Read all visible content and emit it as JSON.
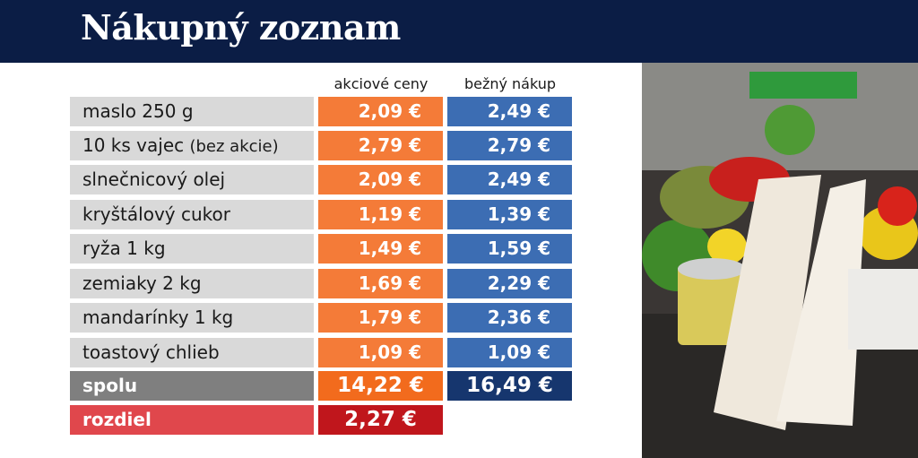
{
  "header": {
    "title": "Nákupný zoznam"
  },
  "table": {
    "columns": [
      "akciové ceny",
      "bežný nákup"
    ],
    "rows": [
      {
        "label": "maslo 250 g",
        "values": [
          "2,09 €",
          "2,49 €"
        ]
      },
      {
        "label": "10 ks vajec",
        "note": "(bez akcie)",
        "values": [
          "2,79 €",
          "2,79 €"
        ]
      },
      {
        "label": "slnečnicový olej",
        "values": [
          "2,09 €",
          "2,49 €"
        ]
      },
      {
        "label": "kryštálový cukor",
        "values": [
          "1,19 €",
          "1,39 €"
        ]
      },
      {
        "label": "ryža 1 kg",
        "values": [
          "1,49 €",
          "1,59 €"
        ]
      },
      {
        "label": "zemiaky 2 kg",
        "values": [
          "1,69 €",
          "2,29 €"
        ]
      },
      {
        "label": "mandarínky 1 kg",
        "values": [
          "1,79 €",
          "2,36 €"
        ]
      },
      {
        "label": "toastový chlieb",
        "values": [
          "1,09 €",
          "1,09 €"
        ]
      }
    ],
    "total": {
      "label": "spolu",
      "values": [
        "14,22 €",
        "16,49 €"
      ]
    },
    "difference": {
      "label": "rozdiel",
      "value": "2,27 €"
    }
  }
}
